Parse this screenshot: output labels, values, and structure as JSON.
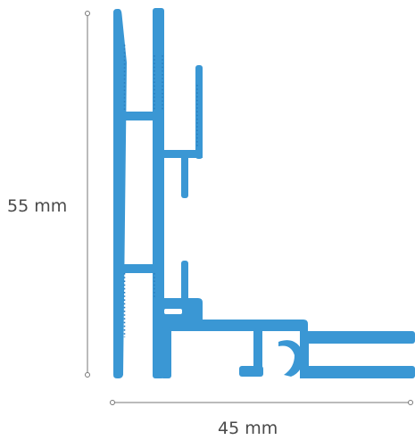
{
  "dimensions": {
    "height": {
      "value": 55,
      "unit": "mm",
      "label": "55 mm"
    },
    "width": {
      "value": 45,
      "unit": "mm",
      "label": "45 mm"
    }
  },
  "colors": {
    "profile": "#3a97d4",
    "dimension_line": "#777777",
    "dimension_text": "#4a4a4a",
    "background": "#ffffff"
  }
}
